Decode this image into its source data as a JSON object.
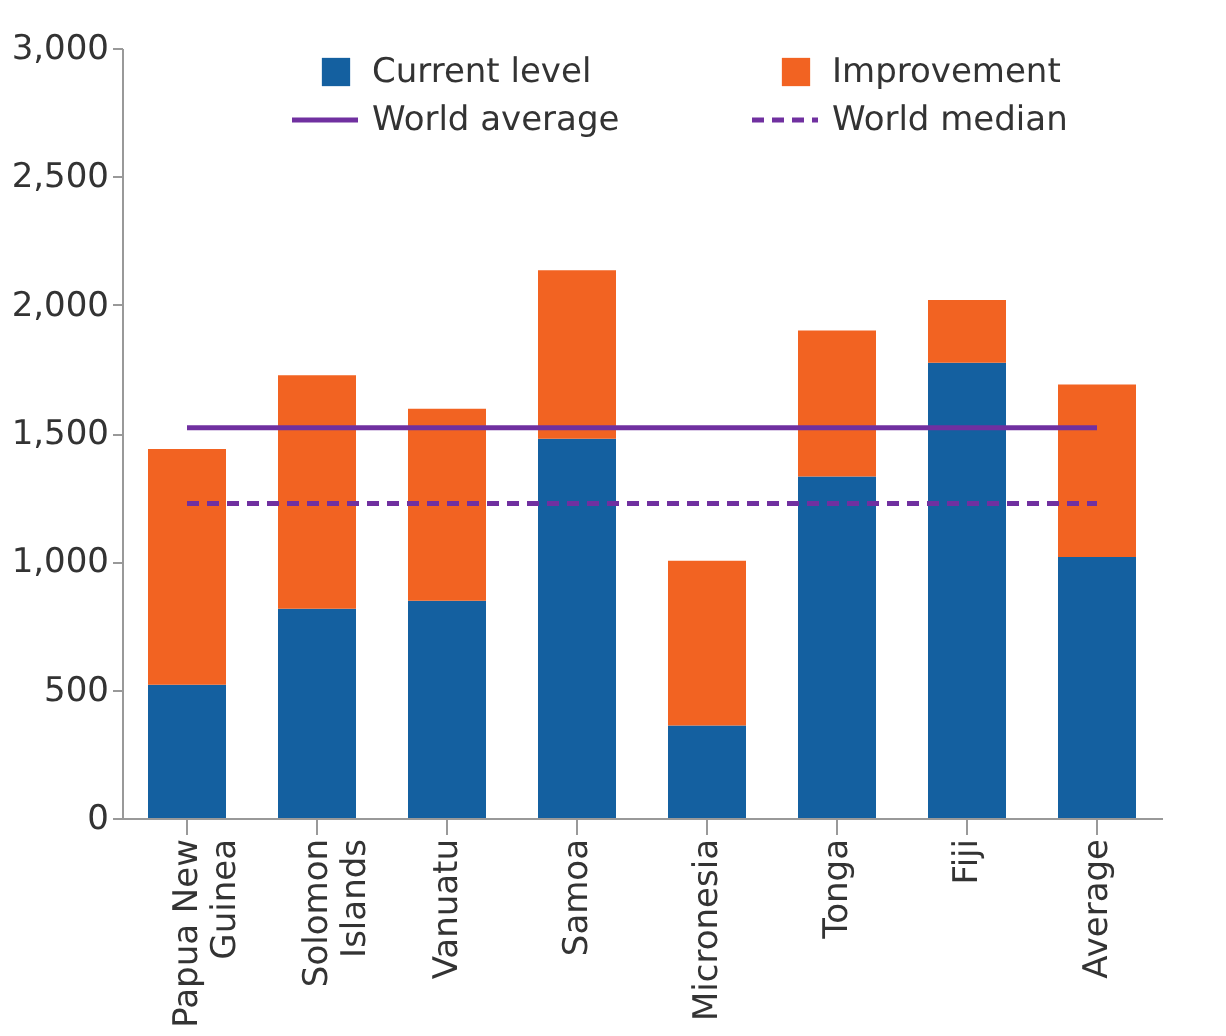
{
  "chart_data": {
    "type": "bar",
    "stacked": true,
    "categories": [
      "Papua New\nGuinea",
      "Solomon\nIslands",
      "Vanuatu",
      "Samoa",
      "Micronesia",
      "Tonga",
      "Fiji",
      "Average"
    ],
    "series": [
      {
        "name": "Current level",
        "color": "#1460a0",
        "values": [
          519,
          815,
          846,
          1478,
          360,
          1331,
          1774,
          1017
        ]
      },
      {
        "name": "Improvement",
        "color": "#f26322",
        "values": [
          919,
          910,
          748,
          656,
          642,
          568,
          244,
          672
        ]
      },
      {
        "name": "World average",
        "type": "line",
        "line_style": "solid",
        "color": "#7030a0",
        "values": [
          1520,
          1520,
          1520,
          1520,
          1520,
          1520,
          1520,
          1520
        ]
      },
      {
        "name": "World median",
        "type": "line",
        "line_style": "dashed",
        "color": "#7030a0",
        "values": [
          1225,
          1225,
          1225,
          1225,
          1225,
          1225,
          1225,
          1225
        ]
      }
    ],
    "ylim": [
      0,
      3000
    ],
    "yticks": [
      0,
      500,
      {
        "value": 1000,
        "label": "1,000"
      },
      {
        "value": 1500,
        "label": "1,500"
      },
      {
        "value": 2000,
        "label": "2,000"
      },
      {
        "value": 2500,
        "label": "2,500"
      },
      {
        "value": 3000,
        "label": "3,000"
      }
    ],
    "grid": false,
    "legend": "top"
  }
}
